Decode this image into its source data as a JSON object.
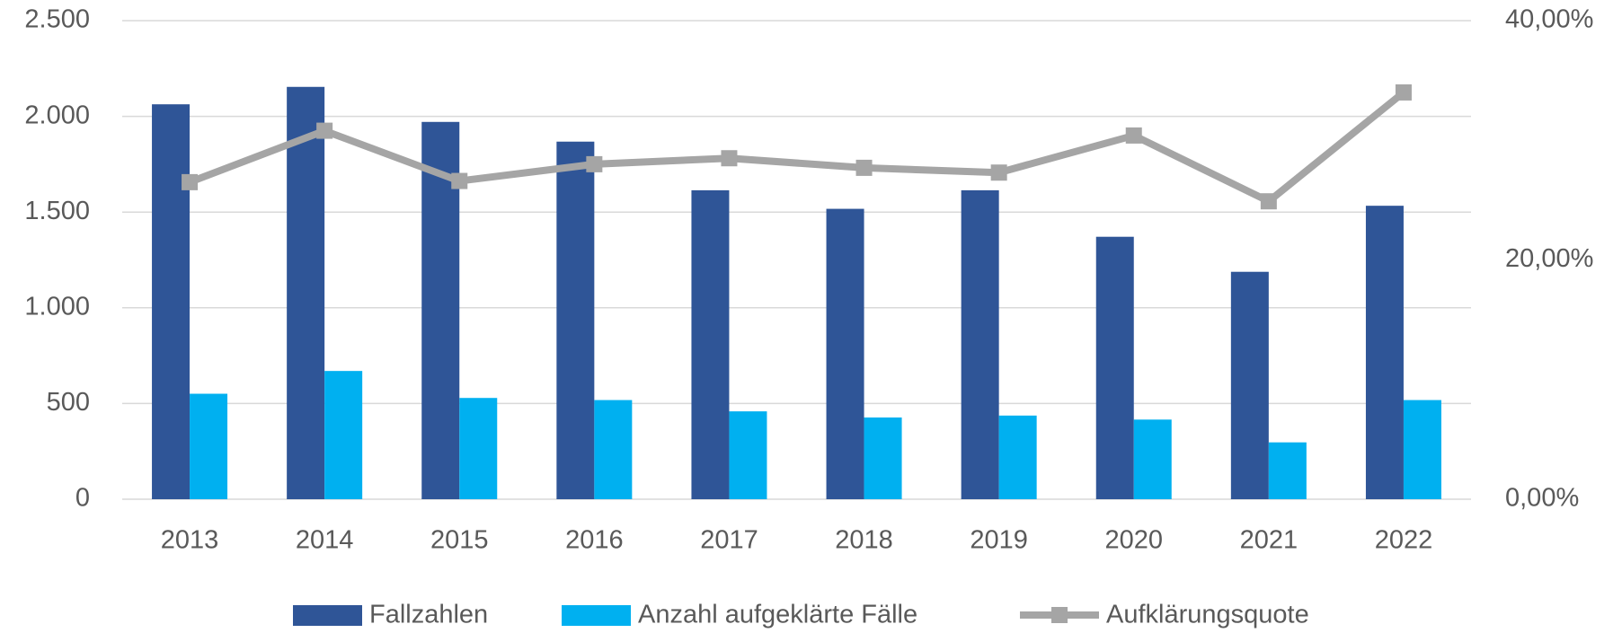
{
  "chart_data": {
    "type": "bar_line",
    "categories": [
      "2013",
      "2014",
      "2015",
      "2016",
      "2017",
      "2018",
      "2019",
      "2020",
      "2021",
      "2022"
    ],
    "series": [
      {
        "name": "Fallzahlen",
        "color": "#2f5597",
        "type": "bar",
        "values": [
          2063,
          2154,
          1971,
          1868,
          1614,
          1517,
          1614,
          1371,
          1188,
          1533
        ]
      },
      {
        "name": "Anzahl aufgeklärte Fälle",
        "color": "#00b0f0",
        "type": "bar",
        "values": [
          551,
          670,
          529,
          518,
          459,
          427,
          437,
          416,
          297,
          518
        ]
      },
      {
        "name": "Aufklärungsquote",
        "color": "#a5a5a5",
        "type": "line",
        "axis": "y2",
        "values": [
          26.5,
          30.8,
          26.6,
          28.0,
          28.5,
          27.7,
          27.3,
          30.4,
          24.9,
          34.0
        ]
      }
    ],
    "ylim": [
      0,
      2500
    ],
    "yticks": [
      0,
      500,
      {
        "value": 1000,
        "label": "1.000"
      },
      {
        "value": 1500,
        "label": "1.500"
      },
      {
        "value": 2000,
        "label": "2.000"
      },
      {
        "value": 2500,
        "label": "2.500"
      }
    ],
    "y2lim": [
      0,
      40
    ],
    "y2ticks": [
      {
        "value": 0,
        "label": "0,00%"
      },
      {
        "value": 20,
        "label": "20,00%"
      },
      {
        "value": 40,
        "label": "40,00%"
      }
    ],
    "grid": true,
    "legend": "bottom"
  }
}
